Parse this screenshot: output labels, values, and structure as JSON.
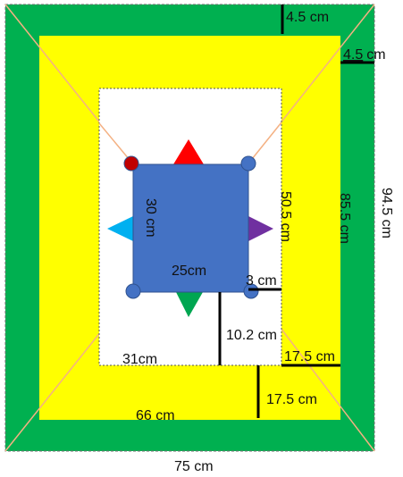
{
  "labels": {
    "green_border_top": "4.5 cm",
    "yellow_border_top": "4.5",
    "yellow_border_top_unit": "cm",
    "outer_height": "94.5 cm",
    "yellow_height": "85.5 cm",
    "white_height": "50.5 cm",
    "blue_height": "30 cm",
    "blue_width": "25cm",
    "gap_right": "3 cm",
    "gap_below_blue": "10.2 cm",
    "white_width": "31cm",
    "white_to_yellow_right": "17.5 cm",
    "white_to_yellow_bottom": "17.5 cm",
    "yellow_width": "66 cm",
    "outer_width": "75 cm"
  },
  "colors": {
    "outer_green": "#00b050",
    "yellow": "#ffff00",
    "white_panel": "#ffffff",
    "blue_square": "#4472c4",
    "diagonal_lines": "#f4b183",
    "corner_dot_top_left": "#c00000",
    "corner_dot_other": "#4472c4",
    "triangle_top": "#ff0000",
    "triangle_left": "#00b0f0",
    "triangle_right": "#7030a0",
    "triangle_bottom": "#00a651",
    "measure_lines": "#000000"
  },
  "shapes": {
    "triangles": [
      "triangle-top",
      "triangle-left",
      "triangle-right",
      "triangle-bottom"
    ],
    "corner_dots": [
      "dot-top-left",
      "dot-top-right",
      "dot-bottom-left",
      "dot-bottom-right"
    ]
  }
}
